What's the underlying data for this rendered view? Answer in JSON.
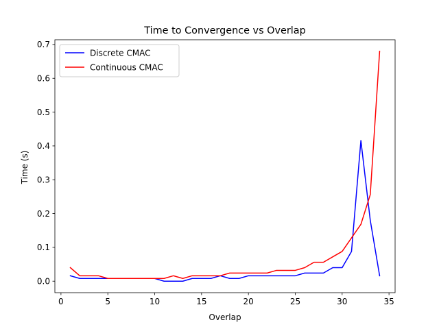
{
  "chart_data": {
    "type": "line",
    "title": "Time to Convergence vs Overlap",
    "xlabel": "Overlap",
    "ylabel": "Time (s)",
    "xlim": [
      -0.65,
      35.65
    ],
    "ylim": [
      -0.034,
      0.714
    ],
    "xticks": [
      0,
      5,
      10,
      15,
      20,
      25,
      30,
      35
    ],
    "yticks": [
      0.0,
      0.1,
      0.2,
      0.3,
      0.4,
      0.5,
      0.6,
      0.7
    ],
    "ytick_labels": [
      "0.0",
      "0.1",
      "0.2",
      "0.3",
      "0.4",
      "0.5",
      "0.6",
      "0.7"
    ],
    "grid": false,
    "legend_position": "top-left",
    "x": [
      1,
      2,
      3,
      4,
      5,
      6,
      7,
      8,
      9,
      10,
      11,
      12,
      13,
      14,
      15,
      16,
      17,
      18,
      19,
      20,
      21,
      22,
      23,
      24,
      25,
      26,
      27,
      28,
      29,
      30,
      31,
      32,
      33,
      34
    ],
    "series": [
      {
        "name": "Discrete CMAC",
        "color": "#0000ff",
        "values": [
          0.016,
          0.008,
          0.008,
          0.008,
          0.008,
          0.008,
          0.008,
          0.008,
          0.008,
          0.008,
          0.0,
          0.0,
          0.0,
          0.008,
          0.008,
          0.008,
          0.016,
          0.008,
          0.008,
          0.016,
          0.016,
          0.016,
          0.016,
          0.016,
          0.016,
          0.024,
          0.024,
          0.024,
          0.04,
          0.04,
          0.088,
          0.416,
          0.18,
          0.016
        ]
      },
      {
        "name": "Continuous CMAC",
        "color": "#ff0000",
        "values": [
          0.04,
          0.016,
          0.016,
          0.016,
          0.008,
          0.008,
          0.008,
          0.008,
          0.008,
          0.008,
          0.008,
          0.016,
          0.008,
          0.016,
          0.016,
          0.016,
          0.016,
          0.024,
          0.024,
          0.024,
          0.024,
          0.024,
          0.032,
          0.032,
          0.032,
          0.04,
          0.056,
          0.056,
          0.072,
          0.088,
          0.128,
          0.168,
          0.256,
          0.68
        ]
      }
    ]
  }
}
